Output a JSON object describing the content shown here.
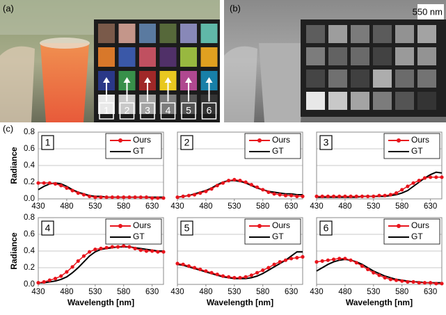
{
  "figure": {
    "labels": [
      "(a)",
      "(b)",
      "(c)"
    ],
    "band": "550 nm",
    "patch_numbers": [
      "1",
      "2",
      "3",
      "4",
      "5",
      "6"
    ]
  },
  "chart_data": [
    {
      "type": "line",
      "title": "1",
      "ylabel": "Radiance",
      "legend": "upper right",
      "grid": true,
      "xlim": [
        430,
        650
      ],
      "ylim": [
        0,
        0.8
      ],
      "xticks": [
        430,
        480,
        530,
        580,
        630
      ],
      "yticks": [
        {
          "value": 0,
          "label": "0.0"
        },
        0.2,
        0.4,
        0.6,
        0.8
      ],
      "x": [
        430,
        440,
        450,
        460,
        470,
        480,
        490,
        500,
        510,
        520,
        530,
        540,
        550,
        560,
        570,
        580,
        590,
        600,
        610,
        620,
        630,
        640,
        650
      ],
      "series": [
        {
          "name": "Ours",
          "color": "#e8141c",
          "values": [
            0.19,
            0.19,
            0.19,
            0.18,
            0.16,
            0.13,
            0.1,
            0.07,
            0.05,
            0.03,
            0.02,
            0.02,
            0.02,
            0.02,
            0.02,
            0.02,
            0.02,
            0.02,
            0.02,
            0.02,
            0.01,
            0.01,
            0.01
          ]
        },
        {
          "name": "GT",
          "color": "#000000",
          "values": [
            0.11,
            0.15,
            0.18,
            0.19,
            0.18,
            0.15,
            0.11,
            0.08,
            0.06,
            0.04,
            0.03,
            0.03,
            0.02,
            0.02,
            0.02,
            0.02,
            0.02,
            0.02,
            0.02,
            0.02,
            0.02,
            0.02,
            0.02
          ]
        }
      ]
    },
    {
      "type": "line",
      "title": "2",
      "legend": "upper right",
      "grid": true,
      "xlim": [
        430,
        650
      ],
      "ylim": [
        0,
        0.8
      ],
      "xticks": [
        430,
        480,
        530,
        580,
        630
      ],
      "yticks": [
        0,
        0.2,
        0.4,
        0.6,
        0.8
      ],
      "x": [
        430,
        440,
        450,
        460,
        470,
        480,
        490,
        500,
        510,
        520,
        530,
        540,
        550,
        560,
        570,
        580,
        590,
        600,
        610,
        620,
        630,
        640,
        650
      ],
      "series": [
        {
          "name": "Ours",
          "color": "#e8141c",
          "values": [
            0.02,
            0.03,
            0.04,
            0.05,
            0.07,
            0.09,
            0.12,
            0.16,
            0.19,
            0.22,
            0.23,
            0.22,
            0.2,
            0.17,
            0.14,
            0.11,
            0.08,
            0.06,
            0.05,
            0.04,
            0.04,
            0.03,
            0.03
          ]
        },
        {
          "name": "GT",
          "color": "#000000",
          "values": [
            0.02,
            0.03,
            0.04,
            0.06,
            0.08,
            0.1,
            0.13,
            0.17,
            0.2,
            0.22,
            0.22,
            0.21,
            0.19,
            0.16,
            0.13,
            0.11,
            0.09,
            0.08,
            0.07,
            0.06,
            0.06,
            0.05,
            0.05
          ]
        }
      ]
    },
    {
      "type": "line",
      "title": "3",
      "legend": "upper right",
      "grid": true,
      "xlim": [
        430,
        650
      ],
      "ylim": [
        0,
        0.8
      ],
      "xticks": [
        430,
        480,
        530,
        580,
        630
      ],
      "yticks": [
        0,
        0.2,
        0.4,
        0.6,
        0.8
      ],
      "x": [
        430,
        440,
        450,
        460,
        470,
        480,
        490,
        500,
        510,
        520,
        530,
        540,
        550,
        560,
        570,
        580,
        590,
        600,
        610,
        620,
        630,
        640,
        650
      ],
      "series": [
        {
          "name": "Ours",
          "color": "#e8141c",
          "values": [
            0.03,
            0.03,
            0.03,
            0.03,
            0.03,
            0.03,
            0.03,
            0.03,
            0.03,
            0.03,
            0.03,
            0.04,
            0.04,
            0.05,
            0.07,
            0.11,
            0.15,
            0.19,
            0.22,
            0.25,
            0.26,
            0.26,
            0.26
          ]
        },
        {
          "name": "GT",
          "color": "#000000",
          "values": [
            0.02,
            0.02,
            0.02,
            0.02,
            0.02,
            0.02,
            0.02,
            0.02,
            0.03,
            0.03,
            0.03,
            0.03,
            0.03,
            0.04,
            0.05,
            0.07,
            0.1,
            0.15,
            0.2,
            0.25,
            0.29,
            0.32,
            0.31
          ]
        }
      ]
    },
    {
      "type": "line",
      "title": "4",
      "xlabel": "Wavelength [nm]",
      "ylabel": "Radiance",
      "legend": "upper right",
      "grid": true,
      "xlim": [
        430,
        650
      ],
      "ylim": [
        0,
        0.8
      ],
      "xticks": [
        430,
        480,
        530,
        580,
        630
      ],
      "yticks": [
        {
          "value": 0,
          "label": "0.0"
        },
        0.2,
        0.4,
        0.6,
        0.8
      ],
      "x": [
        430,
        440,
        450,
        460,
        470,
        480,
        490,
        500,
        510,
        520,
        530,
        540,
        550,
        560,
        570,
        580,
        590,
        600,
        610,
        620,
        630,
        640,
        650
      ],
      "series": [
        {
          "name": "Ours",
          "color": "#e8141c",
          "values": [
            0.02,
            0.03,
            0.05,
            0.07,
            0.1,
            0.15,
            0.21,
            0.28,
            0.34,
            0.39,
            0.42,
            0.43,
            0.44,
            0.45,
            0.45,
            0.46,
            0.45,
            0.43,
            0.41,
            0.4,
            0.4,
            0.39,
            0.39
          ]
        },
        {
          "name": "GT",
          "color": "#000000",
          "values": [
            0.02,
            0.02,
            0.03,
            0.04,
            0.06,
            0.09,
            0.14,
            0.2,
            0.27,
            0.34,
            0.39,
            0.42,
            0.43,
            0.44,
            0.45,
            0.45,
            0.45,
            0.44,
            0.43,
            0.42,
            0.41,
            0.4,
            0.4
          ]
        }
      ]
    },
    {
      "type": "line",
      "title": "5",
      "xlabel": "Wavelength [nm]",
      "legend": "upper right",
      "grid": true,
      "xlim": [
        430,
        650
      ],
      "ylim": [
        0,
        0.8
      ],
      "xticks": [
        430,
        480,
        530,
        580,
        630
      ],
      "yticks": [
        0,
        0.2,
        0.4,
        0.6,
        0.8
      ],
      "x": [
        430,
        440,
        450,
        460,
        470,
        480,
        490,
        500,
        510,
        520,
        530,
        540,
        550,
        560,
        570,
        580,
        590,
        600,
        610,
        620,
        630,
        640,
        650
      ],
      "series": [
        {
          "name": "Ours",
          "color": "#e8141c",
          "values": [
            0.25,
            0.24,
            0.22,
            0.2,
            0.18,
            0.16,
            0.14,
            0.12,
            0.1,
            0.09,
            0.08,
            0.08,
            0.09,
            0.11,
            0.14,
            0.17,
            0.2,
            0.24,
            0.27,
            0.29,
            0.31,
            0.32,
            0.33
          ]
        },
        {
          "name": "GT",
          "color": "#000000",
          "values": [
            0.24,
            0.23,
            0.21,
            0.19,
            0.17,
            0.15,
            0.13,
            0.11,
            0.09,
            0.08,
            0.07,
            0.07,
            0.07,
            0.08,
            0.1,
            0.13,
            0.17,
            0.21,
            0.25,
            0.29,
            0.34,
            0.39,
            0.39
          ]
        }
      ]
    },
    {
      "type": "line",
      "title": "6",
      "xlabel": "Wavelength [nm]",
      "legend": "upper right",
      "grid": true,
      "xlim": [
        430,
        650
      ],
      "ylim": [
        0,
        0.8
      ],
      "xticks": [
        430,
        480,
        530,
        580,
        630
      ],
      "yticks": [
        0,
        0.2,
        0.4,
        0.6,
        0.8
      ],
      "x": [
        430,
        440,
        450,
        460,
        470,
        480,
        490,
        500,
        510,
        520,
        530,
        540,
        550,
        560,
        570,
        580,
        590,
        600,
        610,
        620,
        630,
        640,
        650
      ],
      "series": [
        {
          "name": "Ours",
          "color": "#e8141c",
          "values": [
            0.27,
            0.28,
            0.29,
            0.3,
            0.31,
            0.31,
            0.29,
            0.26,
            0.22,
            0.18,
            0.14,
            0.11,
            0.08,
            0.06,
            0.05,
            0.04,
            0.03,
            0.03,
            0.02,
            0.02,
            0.02,
            0.01,
            0.01
          ]
        },
        {
          "name": "GT",
          "color": "#000000",
          "values": [
            0.16,
            0.2,
            0.24,
            0.27,
            0.29,
            0.3,
            0.29,
            0.27,
            0.24,
            0.2,
            0.16,
            0.13,
            0.1,
            0.08,
            0.06,
            0.05,
            0.04,
            0.03,
            0.03,
            0.02,
            0.02,
            0.02,
            0.02
          ]
        }
      ]
    }
  ]
}
